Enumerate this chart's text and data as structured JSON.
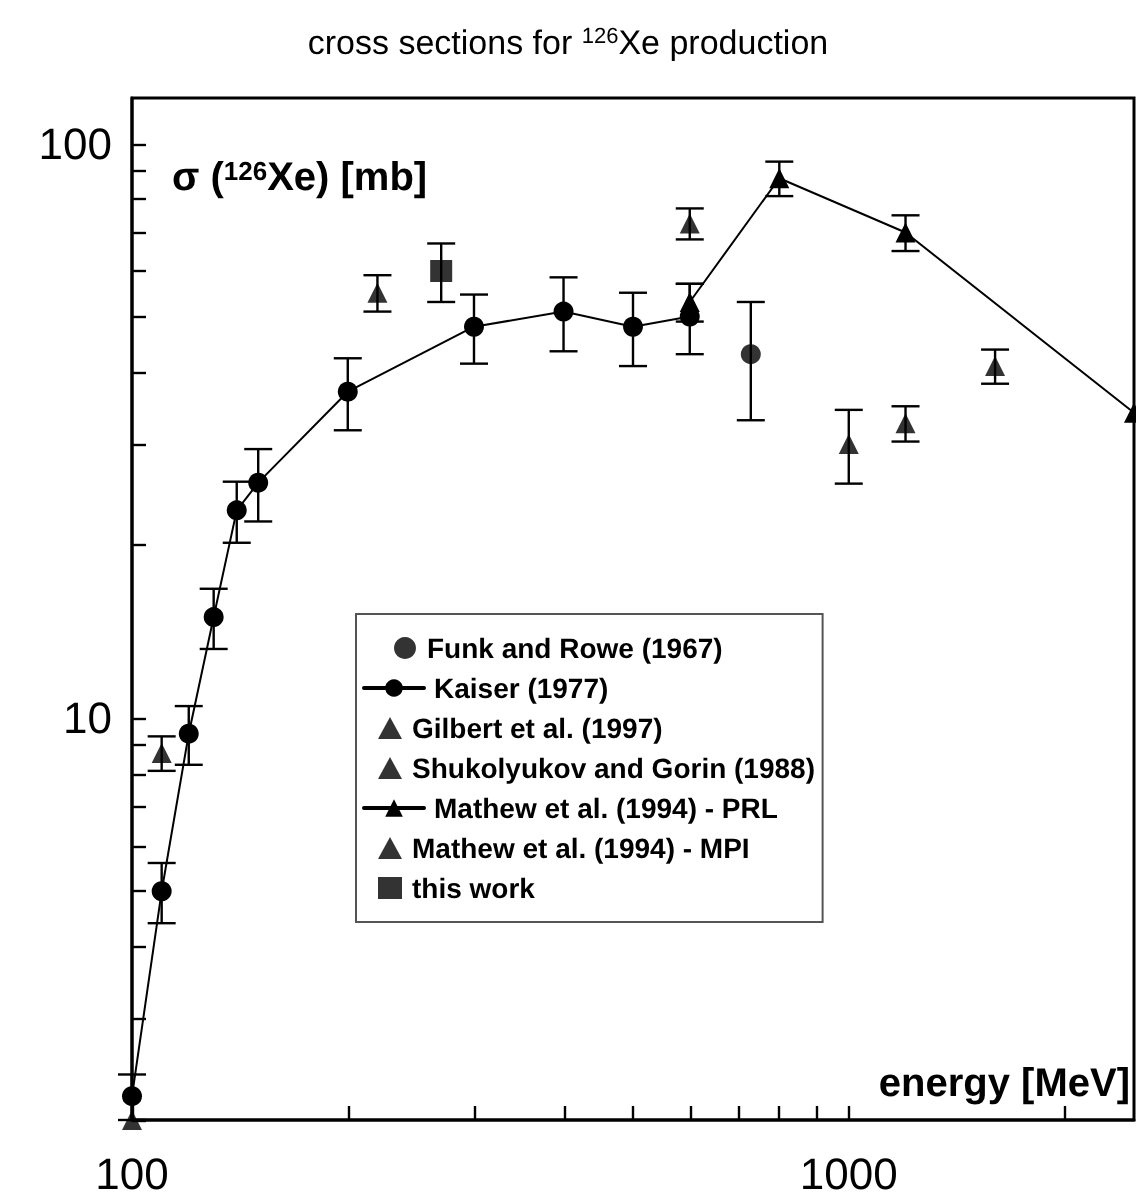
{
  "chart_data": {
    "type": "scatter",
    "title": "cross sections for $^{126}$Xe production",
    "xlabel": "energy [MeV]",
    "ylabel": "σ ($^{126}$Xe) [mb]",
    "log": "xy",
    "grid": false,
    "legend": "bottom",
    "xlim": [
      100,
      2500
    ],
    "ylim": [
      2,
      120
    ],
    "xticks": [
      100,
      {
        "value": 200,
        "label": null
      },
      {
        "value": 300,
        "label": null
      },
      {
        "value": 400,
        "label": null
      },
      {
        "value": 500,
        "label": null
      },
      {
        "value": 600,
        "label": null
      },
      {
        "value": 700,
        "label": null
      },
      {
        "value": 800,
        "label": null
      },
      {
        "value": 900,
        "label": null
      },
      1000,
      {
        "value": 2000,
        "label": null
      }
    ],
    "yticks": [
      {
        "value": 2,
        "label": null
      },
      {
        "value": 3,
        "label": null
      },
      {
        "value": 4,
        "label": null
      },
      {
        "value": 5,
        "label": null
      },
      {
        "value": 6,
        "label": null
      },
      {
        "value": 7,
        "label": null
      },
      {
        "value": 8,
        "label": null
      },
      {
        "value": 9,
        "label": null
      },
      10,
      {
        "value": 20,
        "label": null
      },
      {
        "value": 30,
        "label": null
      },
      {
        "value": 40,
        "label": null
      },
      {
        "value": 50,
        "label": null
      },
      {
        "value": 60,
        "label": null
      },
      {
        "value": 70,
        "label": null
      },
      {
        "value": 80,
        "label": null
      },
      {
        "value": 90,
        "label": null
      },
      100
    ],
    "series": [
      {
        "name": "Funk and Rowe (1967)",
        "marker": "circle",
        "color": "#000000",
        "x": [
          730
        ],
        "values": [
          43
        ],
        "errors": [
          10
        ]
      },
      {
        "name": "Kaiser (1977)",
        "type": "line",
        "marker": "circle",
        "color": "#000000",
        "x": [
          100,
          110,
          120,
          130,
          140,
          150,
          200,
          300,
          400,
          500,
          600
        ],
        "values": [
          2.2,
          5.0,
          9.4,
          15,
          23,
          25.7,
          37,
          48,
          51,
          48,
          50
        ],
        "errors": [
          [
            2.0,
            2.4
          ],
          0.6,
          1.1,
          1.8,
          2.8,
          3.7,
          5.3,
          6.6,
          7.5,
          7,
          7
        ]
      },
      {
        "name": "Gilbert et al. (1997)",
        "marker": "triangle",
        "color": "#000000",
        "x": [
          110,
          220,
          1200,
          1600
        ],
        "values": [
          8.7,
          55,
          32.6,
          41
        ],
        "errors": [
          0.6,
          4,
          2.3,
          2.8
        ]
      },
      {
        "name": "Shukolyukov and Gorin (1988)",
        "marker": "triangle",
        "color": "#000000",
        "x": [
          100,
          1000
        ],
        "values": [
          2.0,
          30
        ],
        "errors": [
          null,
          4.4
        ]
      },
      {
        "name": "Mathew et al. (1994) - PRL",
        "type": "line",
        "marker": "triangle",
        "color": "#000000",
        "x": [
          600,
          800,
          1200,
          2500
        ],
        "values": [
          53,
          87,
          70,
          34
        ],
        "errors": [
          4,
          6,
          5,
          null
        ]
      },
      {
        "name": "Mathew et al. (1994) - MPI",
        "marker": "triangle",
        "color": "#000000",
        "x": [
          600
        ],
        "values": [
          72.6
        ],
        "errors": [
          4.5
        ]
      },
      {
        "name": "this work",
        "marker": "square",
        "color": "#000000",
        "x": [
          270
        ],
        "values": [
          60
        ],
        "errors": [
          7
        ]
      }
    ]
  }
}
